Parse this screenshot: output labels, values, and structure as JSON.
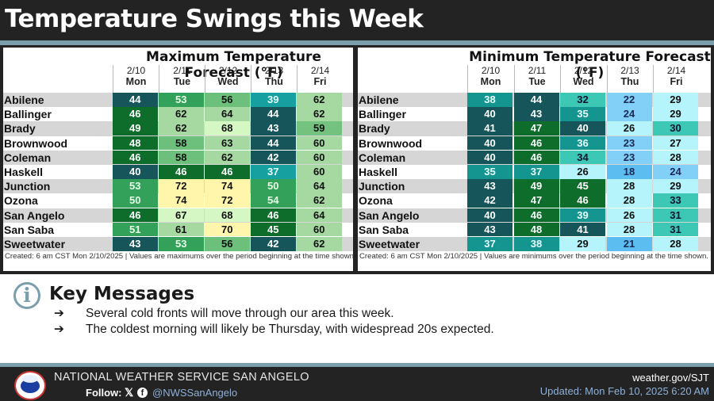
{
  "title": "Temperature Swings this Week",
  "columns": [
    {
      "date": "2/10",
      "day": "Mon"
    },
    {
      "date": "2/11",
      "day": "Tue"
    },
    {
      "date": "2/12",
      "day": "Wed"
    },
    {
      "date": "2/13",
      "day": "Thu"
    },
    {
      "date": "2/14",
      "day": "Fri"
    }
  ],
  "cities": [
    "Abilene",
    "Ballinger",
    "Brady",
    "Brownwood",
    "Coleman",
    "Haskell",
    "Junction",
    "Ozona",
    "San Angelo",
    "San Saba",
    "Sweetwater"
  ],
  "max_table": {
    "title": "Maximum Temperature Forecast (°F)",
    "values": [
      [
        44,
        53,
        56,
        39,
        62
      ],
      [
        46,
        62,
        64,
        44,
        62
      ],
      [
        49,
        62,
        68,
        43,
        59
      ],
      [
        48,
        58,
        63,
        44,
        60
      ],
      [
        46,
        58,
        62,
        42,
        60
      ],
      [
        40,
        46,
        46,
        37,
        60
      ],
      [
        53,
        72,
        74,
        50,
        64
      ],
      [
        50,
        74,
        72,
        54,
        62
      ],
      [
        46,
        67,
        68,
        46,
        64
      ],
      [
        51,
        61,
        70,
        45,
        60
      ],
      [
        43,
        53,
        56,
        42,
        62
      ]
    ],
    "footnote": "Created: 6 am CST Mon 2/10/2025  |  Values are maximums over the period beginning at the time shown."
  },
  "min_table": {
    "title": "Minimum Temperature Forecast (°F)",
    "values": [
      [
        38,
        44,
        32,
        22,
        29
      ],
      [
        40,
        43,
        35,
        24,
        29
      ],
      [
        41,
        47,
        40,
        26,
        30
      ],
      [
        40,
        46,
        36,
        23,
        27
      ],
      [
        40,
        46,
        34,
        23,
        28
      ],
      [
        35,
        37,
        26,
        18,
        24
      ],
      [
        43,
        49,
        45,
        28,
        29
      ],
      [
        42,
        47,
        46,
        28,
        33
      ],
      [
        40,
        46,
        39,
        26,
        31
      ],
      [
        43,
        48,
        41,
        28,
        31
      ],
      [
        37,
        38,
        29,
        21,
        28
      ]
    ],
    "footnote": "Created: 6 am CST Mon 2/10/2025  |  Values are minimums over the period beginning at the time shown."
  },
  "key_messages": {
    "icon": "info-icon",
    "title": "Key Messages",
    "bullet": "➔",
    "items": [
      "Several cold fronts will move through our area this week.",
      "The coldest morning will likely be Thursday, with widespread 20s expected."
    ]
  },
  "footer": {
    "org": "NATIONAL WEATHER SERVICE SAN ANGELO",
    "follow_label": "Follow:",
    "x_icon": "𝕏",
    "fb_icon": "f",
    "handle": "@NWSSanAngelo",
    "site": "weather.gov/SJT",
    "updated": "Updated: Mon Feb 10, 2025 6:20 AM"
  },
  "info_glyph": "i",
  "colors": {
    "accent_bar": "#7a9fab",
    "header_bg": "#232323"
  }
}
